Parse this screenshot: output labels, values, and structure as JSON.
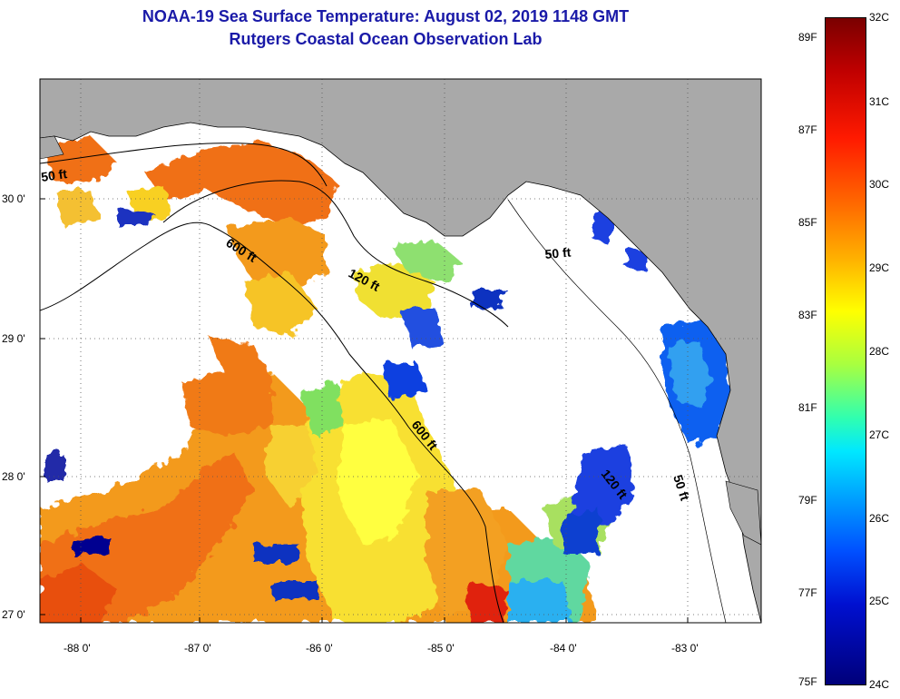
{
  "title": {
    "line1": "NOAA-19 Sea Surface Temperature:  August 02, 2019 1148 GMT",
    "line2": "Rutgers Coastal Ocean Observation Lab"
  },
  "axes": {
    "lat_labels": [
      "30 0'",
      "29 0'",
      "28 0'",
      "27 0'"
    ],
    "lon_labels": [
      "-88 0'",
      "-87 0'",
      "-86 0'",
      "-85 0'",
      "-84 0'",
      "-83 0'"
    ]
  },
  "contours": {
    "c50_a": "50 ft",
    "c600_a": "600 ft",
    "c120_a": "120 ft",
    "c50_b": "50 ft",
    "c600_b": "600 ft",
    "c120_b": "120 ft",
    "c50_c": "50 ft"
  },
  "colorbar": {
    "f_labels": [
      "89F",
      "87F",
      "85F",
      "83F",
      "81F",
      "79F",
      "77F",
      "75F"
    ],
    "c_labels": [
      "32C",
      "31C",
      "30C",
      "29C",
      "28C",
      "27C",
      "26C",
      "25C",
      "24C"
    ]
  },
  "colors": {
    "land": "#a9a9a9",
    "cloud": "#ffffff",
    "warm": "#f07a18",
    "hot": "#e03010",
    "mid": "#f8d020",
    "yellow": "#ffff30",
    "green": "#70e060",
    "cyan": "#30c8e8",
    "blue": "#1050f0",
    "navy": "#000090"
  }
}
